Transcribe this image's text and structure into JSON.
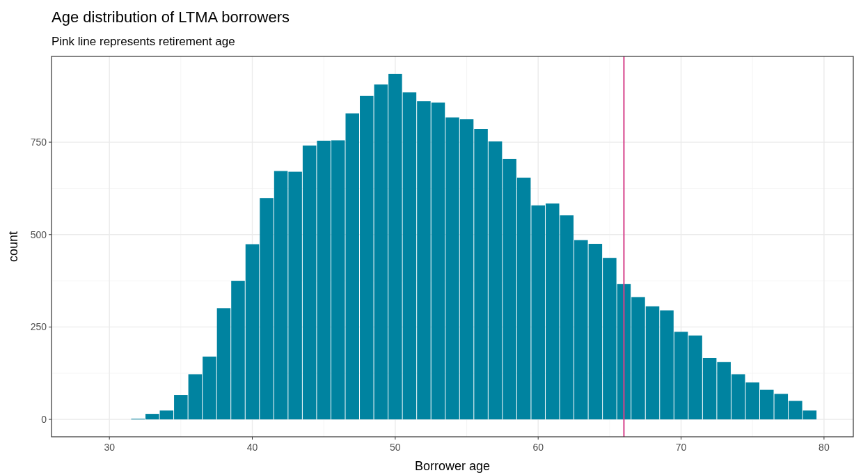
{
  "chart_data": {
    "type": "histogram",
    "title": "Age distribution of LTMA borrowers",
    "subtitle": "Pink line represents retirement age",
    "xlabel": "Borrower age",
    "ylabel": "count",
    "bins": [
      31.5,
      32.5,
      33.5,
      34.5,
      35.5,
      36.5,
      37.5,
      38.5,
      39.5,
      40.5,
      41.5,
      42.5,
      43.5,
      44.5,
      45.5,
      46.5,
      47.5,
      48.5,
      49.5,
      50.5,
      51.5,
      52.5,
      53.5,
      54.5,
      55.5,
      56.5,
      57.5,
      58.5,
      59.5,
      60.5,
      61.5,
      62.5,
      63.5,
      64.5,
      65.5,
      66.5,
      67.5,
      68.5,
      69.5,
      70.5,
      71.5,
      72.5,
      73.5,
      74.5,
      75.5,
      76.5,
      77.5,
      78.5,
      79.5
    ],
    "values": [
      2,
      15,
      24,
      66,
      122,
      170,
      301,
      375,
      474,
      599,
      672,
      670,
      741,
      754,
      755,
      828,
      875,
      906,
      935,
      885,
      861,
      857,
      817,
      812,
      786,
      752,
      705,
      654,
      579,
      584,
      552,
      485,
      475,
      437,
      366,
      331,
      306,
      295,
      237,
      227,
      166,
      155,
      122,
      100,
      80,
      69,
      50,
      24
    ],
    "color": "#0083a0",
    "xlim": [
      25.95,
      82.05
    ],
    "ylim": [
      -47,
      982
    ],
    "xticks": [
      30,
      40,
      50,
      60,
      70,
      80
    ],
    "yticks": [
      0,
      250,
      500,
      750
    ],
    "grid": true,
    "ref_lines": [
      {
        "axis": "x",
        "value": 66,
        "color": "#d6408a"
      }
    ]
  }
}
